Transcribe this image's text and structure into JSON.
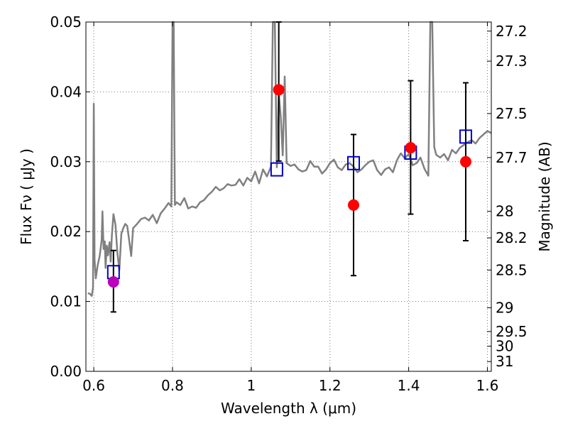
{
  "chart_data": {
    "type": "line",
    "xlabel": "Wavelength  λ (μm)",
    "ylabel": "Flux  Fν  ( μJy )",
    "y2label": "Magnitude (AB)",
    "xlim": [
      0.58,
      1.61
    ],
    "ylim": [
      0.0,
      0.05
    ],
    "grid": true,
    "x_ticks": [
      {
        "value": 0.6,
        "label": "0.6"
      },
      {
        "value": 0.8,
        "label": "0.8"
      },
      {
        "value": 1.0,
        "label": "1"
      },
      {
        "value": 1.2,
        "label": "1.2"
      },
      {
        "value": 1.4,
        "label": "1.4"
      },
      {
        "value": 1.6,
        "label": "1.6"
      }
    ],
    "y_ticks": [
      {
        "value": 0.0,
        "label": "0.00"
      },
      {
        "value": 0.01,
        "label": "0.01"
      },
      {
        "value": 0.02,
        "label": "0.02"
      },
      {
        "value": 0.03,
        "label": "0.03"
      },
      {
        "value": 0.04,
        "label": "0.04"
      },
      {
        "value": 0.05,
        "label": "0.05"
      }
    ],
    "y2_ticks": [
      {
        "flux": 0.0487,
        "label": "27.2"
      },
      {
        "flux": 0.0444,
        "label": "27.3"
      },
      {
        "flux": 0.0369,
        "label": "27.5"
      },
      {
        "flux": 0.0306,
        "label": "27.7"
      },
      {
        "flux": 0.0229,
        "label": "28"
      },
      {
        "flux": 0.0191,
        "label": "28.2"
      },
      {
        "flux": 0.0145,
        "label": "28.5"
      },
      {
        "flux": 0.0091,
        "label": "29"
      },
      {
        "flux": 0.0057,
        "label": "29.5"
      },
      {
        "flux": 0.0036,
        "label": "30"
      },
      {
        "flux": 0.0014,
        "label": "31"
      }
    ],
    "colors": {
      "spectrum": "#808080",
      "model_marker": "#0000cc",
      "observed_marker": "#ff0000",
      "first_observed_marker": "#bb00bb",
      "errorbar": "#000000",
      "grid": "#777777"
    },
    "series": [
      {
        "kind": "spectrum",
        "x": [
          0.585,
          0.59,
          0.595,
          0.598,
          0.6,
          0.602,
          0.605,
          0.61,
          0.615,
          0.62,
          0.622,
          0.625,
          0.628,
          0.63,
          0.633,
          0.636,
          0.64,
          0.643,
          0.646,
          0.65,
          0.655,
          0.66,
          0.665,
          0.67,
          0.675,
          0.68,
          0.685,
          0.69,
          0.695,
          0.7,
          0.71,
          0.72,
          0.73,
          0.74,
          0.75,
          0.76,
          0.77,
          0.78,
          0.79,
          0.797,
          0.8,
          0.803,
          0.806,
          0.81,
          0.82,
          0.83,
          0.84,
          0.85,
          0.86,
          0.87,
          0.88,
          0.89,
          0.9,
          0.91,
          0.92,
          0.93,
          0.94,
          0.95,
          0.96,
          0.97,
          0.98,
          0.99,
          1.0,
          1.01,
          1.02,
          1.03,
          1.04,
          1.05,
          1.055,
          1.06,
          1.065,
          1.07,
          1.075,
          1.08,
          1.085,
          1.09,
          1.1,
          1.11,
          1.12,
          1.13,
          1.14,
          1.15,
          1.16,
          1.17,
          1.18,
          1.19,
          1.2,
          1.21,
          1.22,
          1.23,
          1.24,
          1.25,
          1.26,
          1.27,
          1.28,
          1.29,
          1.3,
          1.31,
          1.32,
          1.33,
          1.34,
          1.35,
          1.36,
          1.37,
          1.38,
          1.39,
          1.4,
          1.41,
          1.42,
          1.43,
          1.44,
          1.45,
          1.455,
          1.46,
          1.465,
          1.47,
          1.48,
          1.49,
          1.5,
          1.51,
          1.52,
          1.53,
          1.54,
          1.55,
          1.56,
          1.57,
          1.58,
          1.59,
          1.6,
          1.61
        ],
        "values": [
          0.0112,
          0.0111,
          0.0108,
          0.012,
          0.0383,
          0.016,
          0.0133,
          0.0152,
          0.0165,
          0.0188,
          0.0229,
          0.0175,
          0.0186,
          0.0148,
          0.018,
          0.0166,
          0.0185,
          0.0157,
          0.0195,
          0.0225,
          0.021,
          0.017,
          0.0145,
          0.0197,
          0.0205,
          0.0211,
          0.0208,
          0.0187,
          0.0165,
          0.0205,
          0.0211,
          0.0218,
          0.022,
          0.0216,
          0.0224,
          0.0212,
          0.0226,
          0.0233,
          0.0241,
          0.0236,
          0.05,
          0.05,
          0.0238,
          0.0242,
          0.0238,
          0.0248,
          0.0233,
          0.0236,
          0.0234,
          0.0242,
          0.0245,
          0.0252,
          0.0257,
          0.0264,
          0.0259,
          0.0262,
          0.0268,
          0.0266,
          0.0267,
          0.0275,
          0.0266,
          0.0277,
          0.0272,
          0.0286,
          0.0269,
          0.0289,
          0.0279,
          0.0293,
          0.05,
          0.05,
          0.0292,
          0.0398,
          0.0365,
          0.0309,
          0.0422,
          0.0298,
          0.0294,
          0.0296,
          0.0289,
          0.0286,
          0.0288,
          0.0301,
          0.0293,
          0.0293,
          0.0283,
          0.0289,
          0.0298,
          0.0303,
          0.0292,
          0.0288,
          0.0296,
          0.0298,
          0.0293,
          0.0285,
          0.0289,
          0.0295,
          0.03,
          0.0302,
          0.0288,
          0.0281,
          0.0289,
          0.0292,
          0.0285,
          0.0302,
          0.0312,
          0.0305,
          0.0311,
          0.0295,
          0.0298,
          0.0306,
          0.029,
          0.028,
          0.05,
          0.05,
          0.0321,
          0.031,
          0.0306,
          0.0311,
          0.0302,
          0.0317,
          0.0312,
          0.032,
          0.0324,
          0.0328,
          0.0331,
          0.0326,
          0.0334,
          0.0339,
          0.0344,
          0.0341
        ]
      },
      {
        "kind": "model",
        "x": [
          0.65,
          1.065,
          1.26,
          1.405,
          1.545
        ],
        "values": [
          0.0142,
          0.0289,
          0.0298,
          0.0313,
          0.0336
        ]
      },
      {
        "kind": "observed",
        "x": [
          0.65,
          1.07,
          1.26,
          1.405,
          1.545
        ],
        "values": [
          0.0128,
          0.0403,
          0.0238,
          0.032,
          0.03
        ],
        "yerr_low": [
          0.0085,
          0.0301,
          0.0137,
          0.0225,
          0.0187
        ],
        "yerr_high": [
          0.0173,
          0.05,
          0.0339,
          0.0416,
          0.0413
        ]
      }
    ]
  }
}
